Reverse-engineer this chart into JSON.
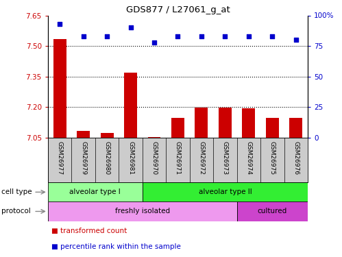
{
  "title": "GDS877 / L27061_g_at",
  "samples": [
    "GSM26977",
    "GSM26979",
    "GSM26980",
    "GSM26981",
    "GSM26970",
    "GSM26971",
    "GSM26972",
    "GSM26973",
    "GSM26974",
    "GSM26975",
    "GSM26976"
  ],
  "bar_values": [
    7.533,
    7.083,
    7.073,
    7.368,
    7.053,
    7.148,
    7.198,
    7.198,
    7.193,
    7.148,
    7.148
  ],
  "dot_values": [
    93,
    83,
    83,
    90,
    78,
    83,
    83,
    83,
    83,
    83,
    80
  ],
  "ylim_left": [
    7.05,
    7.65
  ],
  "ylim_right": [
    0,
    100
  ],
  "yticks_left": [
    7.05,
    7.2,
    7.35,
    7.5,
    7.65
  ],
  "yticks_right": [
    0,
    25,
    50,
    75,
    100
  ],
  "ytick_labels_right": [
    "0",
    "25",
    "50",
    "75",
    "100%"
  ],
  "hlines": [
    7.5,
    7.35,
    7.2
  ],
  "bar_color": "#cc0000",
  "dot_color": "#0000cc",
  "cell_type_groups": [
    {
      "label": "alveolar type I",
      "start": 0,
      "end": 4,
      "color": "#99ff99"
    },
    {
      "label": "alveolar type II",
      "start": 4,
      "end": 11,
      "color": "#33ee33"
    }
  ],
  "protocol_groups": [
    {
      "label": "freshly isolated",
      "start": 0,
      "end": 8,
      "color": "#ee99ee"
    },
    {
      "label": "cultured",
      "start": 8,
      "end": 11,
      "color": "#cc44cc"
    }
  ],
  "legend_items": [
    {
      "label": "transformed count",
      "color": "#cc0000"
    },
    {
      "label": "percentile rank within the sample",
      "color": "#0000cc"
    }
  ],
  "tick_color_left": "#cc0000",
  "tick_color_right": "#0000cc",
  "bar_width": 0.55,
  "samplebox_color": "#cccccc"
}
